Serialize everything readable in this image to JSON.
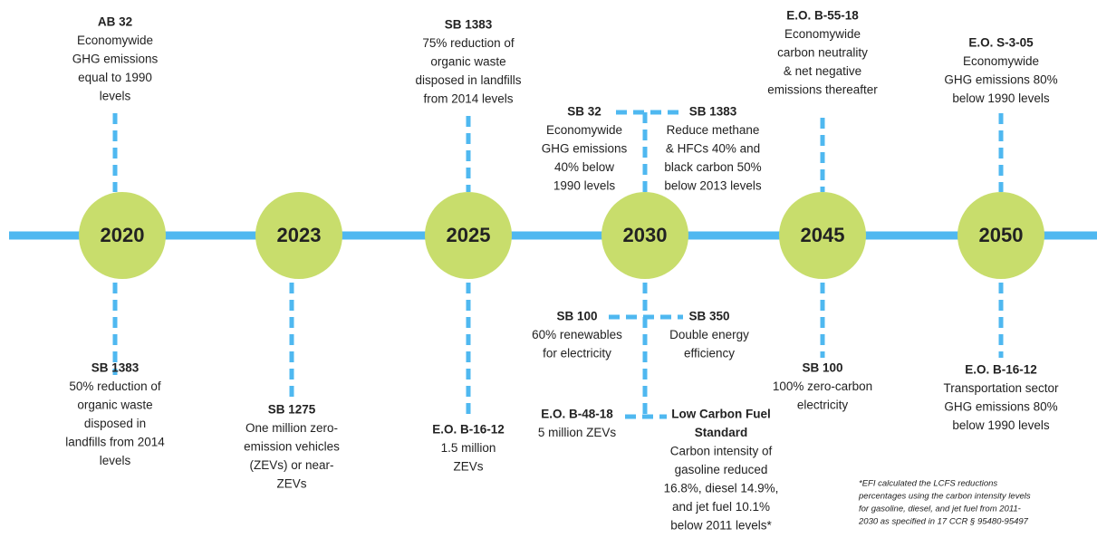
{
  "milestones": [
    {
      "year": "2020"
    },
    {
      "year": "2023"
    },
    {
      "year": "2025"
    },
    {
      "year": "2030"
    },
    {
      "year": "2045"
    },
    {
      "year": "2050"
    }
  ],
  "notes": [
    {
      "title": [
        "AB 32"
      ],
      "lines": [
        "Economywide",
        "GHG emissions",
        "equal to 1990",
        "levels"
      ]
    },
    {
      "title": [
        "SB 1383"
      ],
      "lines": [
        "50% reduction of",
        "organic waste",
        "disposed in",
        "landfills from 2014",
        "levels"
      ]
    },
    {
      "title": [
        "SB 1275"
      ],
      "lines": [
        "One million zero-",
        "emission vehicles",
        "(ZEVs) or near-",
        "ZEVs"
      ]
    },
    {
      "title": [
        "SB 1383"
      ],
      "lines": [
        "75% reduction of",
        "organic waste",
        "disposed in landfills",
        "from 2014 levels"
      ]
    },
    {
      "title": [
        "E.O. B-16-12"
      ],
      "lines": [
        "1.5 million",
        "ZEVs"
      ]
    },
    {
      "title": [
        "SB 32"
      ],
      "lines": [
        "Economywide",
        "GHG emissions",
        "40% below",
        "1990 levels"
      ]
    },
    {
      "title": [
        "SB 1383"
      ],
      "lines": [
        "Reduce methane",
        "& HFCs 40% and",
        "black carbon 50%",
        "below 2013 levels"
      ]
    },
    {
      "title": [
        "SB 100"
      ],
      "lines": [
        "60% renewables",
        "for electricity"
      ]
    },
    {
      "title": [
        "SB 350"
      ],
      "lines": [
        "Double energy",
        "efficiency"
      ]
    },
    {
      "title": [
        "E.O. B-48-18"
      ],
      "lines": [
        "5 million ZEVs"
      ]
    },
    {
      "title": [
        "Low Carbon Fuel",
        "Standard"
      ],
      "lines": [
        "Carbon intensity of",
        "gasoline reduced",
        "16.8%, diesel 14.9%,",
        "and jet fuel 10.1%",
        "below 2011 levels*"
      ]
    },
    {
      "title": [
        "E.O. B-55-18"
      ],
      "lines": [
        "Economywide",
        "carbon neutrality",
        "& net negative",
        "emissions thereafter"
      ]
    },
    {
      "title": [
        "SB 100"
      ],
      "lines": [
        "100% zero-carbon",
        "electricity"
      ]
    },
    {
      "title": [
        "E.O. S-3-05"
      ],
      "lines": [
        "Economywide",
        "GHG emissions 80%",
        "below 1990 levels"
      ]
    },
    {
      "title": [
        "E.O. B-16-12"
      ],
      "lines": [
        "Transportation sector",
        "GHG emissions 80%",
        "below 1990 levels"
      ]
    }
  ],
  "footnote": [
    "*EFI calculated the LCFS reductions",
    "percentages using the carbon intensity levels",
    "for gasoline, diesel, and jet fuel from 2011-",
    "2030 as specified in 17 CCR  § 95480-95497"
  ]
}
